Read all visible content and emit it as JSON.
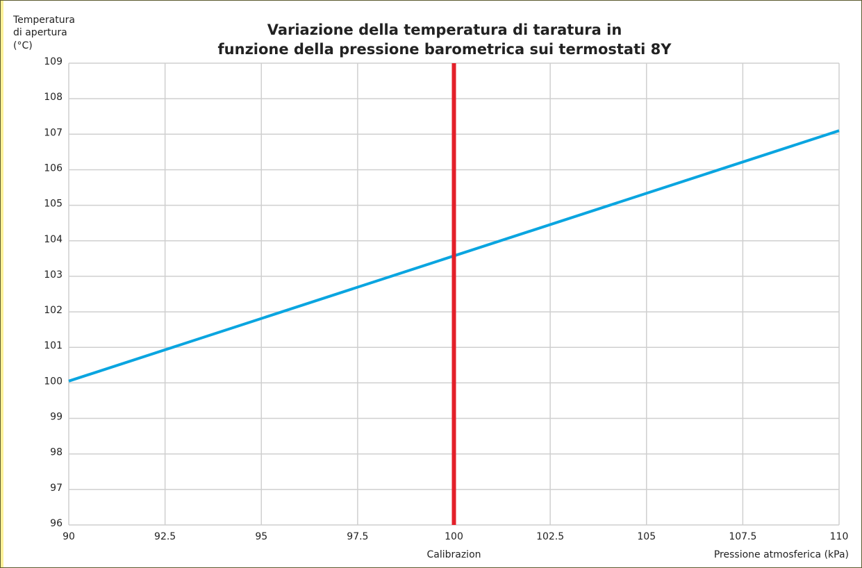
{
  "chart_data": {
    "type": "line",
    "title": [
      "Variazione della temperatura di taratura in",
      "funzione della pressione barometrica sui termostati 8Y"
    ],
    "ylabel": [
      "Temperatura",
      "di apertura",
      "(°C)"
    ],
    "xlabel": "Pressione atmosferica (kPa)",
    "x": [
      90,
      110
    ],
    "series": [
      {
        "color": "#0aa5e0",
        "values": [
          100.05,
          107.1
        ]
      }
    ],
    "annotations": [
      {
        "x": 100,
        "label": "Calibrazion",
        "color": "#e3202a"
      }
    ],
    "xlim": [
      90,
      110
    ],
    "xticks": [
      90,
      92.5,
      95,
      97.5,
      100,
      102.5,
      105,
      107.5,
      110
    ],
    "ylim": [
      96,
      109
    ],
    "yticks": [
      96,
      97,
      98,
      99,
      100,
      101,
      102,
      103,
      104,
      105,
      106,
      107,
      108,
      109
    ],
    "grid": true
  }
}
